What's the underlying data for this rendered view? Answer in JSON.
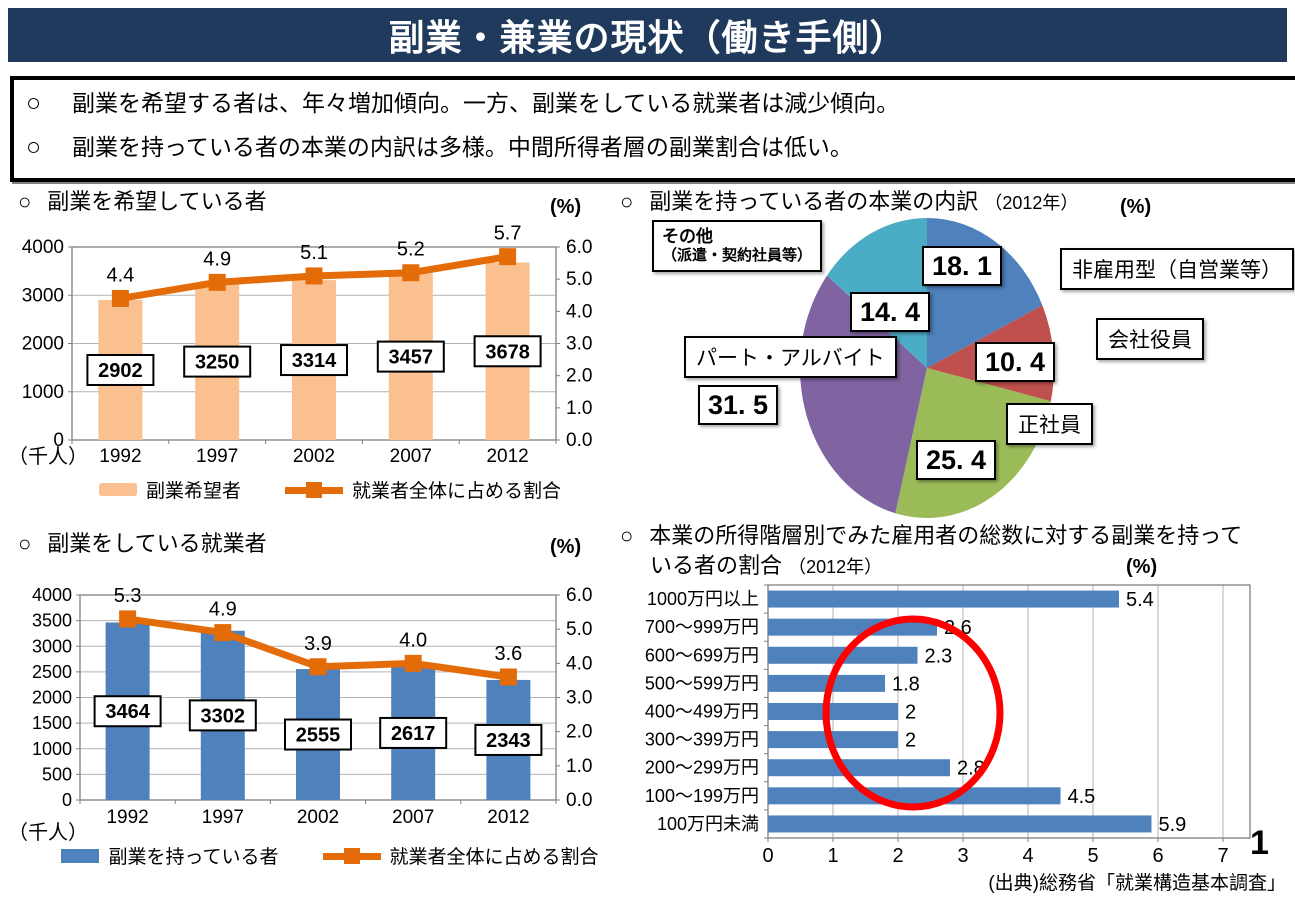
{
  "page": {
    "title": "副業・兼業の現状（働き手側）",
    "header_color": "#1F3A5C",
    "page_number": "1",
    "source": "(出典)総務省「就業構造基本調査」"
  },
  "summary": {
    "marker": "○",
    "bullets": [
      "副業を希望する者は、年々増加傾向。一方、副業をしている就業者は減少傾向。",
      "副業を持っている者の本業の内訳は多様。中間所得者層の副業割合は低い。"
    ]
  },
  "sections": {
    "wishers": {
      "marker": "○",
      "title": "副業を希望している者",
      "unit_left": "（千人）",
      "unit_right": "(%)"
    },
    "mainjob": {
      "marker": "○",
      "title": "副業を持っている者の本業の内訳",
      "year_note": "（2012年）",
      "unit_right": "(%)"
    },
    "holders": {
      "marker": "○",
      "title": "副業をしている就業者",
      "unit_left": "（千人）",
      "unit_right": "(%)"
    },
    "income": {
      "marker": "○",
      "title_line1": "本業の所得階層別でみた雇用者の総数に対する副業を持って",
      "title_line2": "いる者の割合",
      "year_note": "（2012年）",
      "unit_right": "(%)"
    }
  },
  "chart_data": [
    {
      "id": "wishers",
      "type": "bar",
      "subtype": "combo-bar-line",
      "title": "副業を希望している者",
      "categories": [
        "1992",
        "1997",
        "2002",
        "2007",
        "2012"
      ],
      "series": [
        {
          "name": "副業希望者",
          "chart": "bar",
          "axis": "left",
          "values": [
            2902,
            3250,
            3314,
            3457,
            3678
          ],
          "color": "#FAC090"
        },
        {
          "name": "就業者全体に占める割合",
          "chart": "line",
          "axis": "right",
          "values": [
            4.4,
            4.9,
            5.1,
            5.2,
            5.7
          ],
          "labels": [
            "4.4",
            "4.9",
            "5.1",
            "5.2",
            "5.7"
          ],
          "color": "#E36C09"
        }
      ],
      "left_axis": {
        "unit": "千人",
        "min": 0,
        "max": 4000,
        "step": 1000,
        "tick_labels": [
          "0",
          "1000",
          "2000",
          "3000",
          "4000"
        ]
      },
      "right_axis": {
        "unit": "%",
        "min": 0,
        "max": 6,
        "step": 1,
        "tick_labels": [
          "0.0",
          "1.0",
          "2.0",
          "3.0",
          "4.0",
          "5.0",
          "6.0"
        ]
      },
      "grid": true,
      "legend_position": "bottom"
    },
    {
      "id": "mainjob-pie",
      "type": "pie",
      "title": "副業を持っている者の本業の内訳",
      "year": "2012年",
      "unit": "%",
      "start_angle": "top",
      "direction": "clockwise",
      "slices": [
        {
          "label": "非雇用型（自営業等）",
          "value": 18.1,
          "display": "18. 1",
          "color": "#4F81BD"
        },
        {
          "label": "会社役員",
          "value": 10.4,
          "display": "10. 4",
          "color": "#C0504D"
        },
        {
          "label": "正社員",
          "value": 25.4,
          "display": "25. 4",
          "color": "#9BBB59"
        },
        {
          "label": "パート・アルバイト",
          "value": 31.5,
          "display": "31. 5",
          "color": "#8064A2"
        },
        {
          "label": "その他",
          "label_note": "（派遣・契約社員等）",
          "value": 14.4,
          "display": "14. 4",
          "color": "#4BACC6"
        }
      ]
    },
    {
      "id": "holders",
      "type": "bar",
      "subtype": "combo-bar-line",
      "title": "副業をしている就業者",
      "categories": [
        "1992",
        "1997",
        "2002",
        "2007",
        "2012"
      ],
      "series": [
        {
          "name": "副業を持っている者",
          "chart": "bar",
          "axis": "left",
          "values": [
            3464,
            3302,
            2555,
            2617,
            2343
          ],
          "color": "#4F81BD"
        },
        {
          "name": "就業者全体に占める割合",
          "chart": "line",
          "axis": "right",
          "values": [
            5.3,
            4.9,
            3.9,
            4.0,
            3.6
          ],
          "labels": [
            "5.3",
            "4.9",
            "3.9",
            "4.0",
            "3.6"
          ],
          "color": "#E36C09"
        }
      ],
      "left_axis": {
        "unit": "千人",
        "min": 0,
        "max": 4000,
        "step": 500,
        "tick_labels": [
          "0",
          "500",
          "1000",
          "1500",
          "2000",
          "2500",
          "3000",
          "3500",
          "4000"
        ]
      },
      "right_axis": {
        "unit": "%",
        "min": 0,
        "max": 6,
        "step": 1,
        "tick_labels": [
          "0.0",
          "1.0",
          "2.0",
          "3.0",
          "4.0",
          "5.0",
          "6.0"
        ]
      },
      "grid": true,
      "legend_position": "bottom"
    },
    {
      "id": "income",
      "type": "bar",
      "subtype": "horizontal-bar",
      "title": "本業の所得階層別でみた雇用者の総数に対する副業を持っている者の割合",
      "year": "2012年",
      "unit": "%",
      "categories": [
        "1000万円以上",
        "700～999万円",
        "600～699万円",
        "500～599万円",
        "400～499万円",
        "300～399万円",
        "200～299万円",
        "100～199万円",
        "100万円未満"
      ],
      "values": [
        5.4,
        2.6,
        2.3,
        1.8,
        2,
        2,
        2.8,
        4.5,
        5.9
      ],
      "value_labels": [
        "5.4",
        "2.6",
        "2.3",
        "1.8",
        "2",
        "2",
        "2.8",
        "4.5",
        "5.9"
      ],
      "color": "#4F81BD",
      "x_axis": {
        "min": 0,
        "max": 7,
        "step": 1,
        "tick_labels": [
          "0",
          "1",
          "2",
          "3",
          "4",
          "5",
          "6",
          "7"
        ]
      },
      "annotation": {
        "shape": "ellipse",
        "color": "#FF0000"
      },
      "grid": true
    }
  ]
}
